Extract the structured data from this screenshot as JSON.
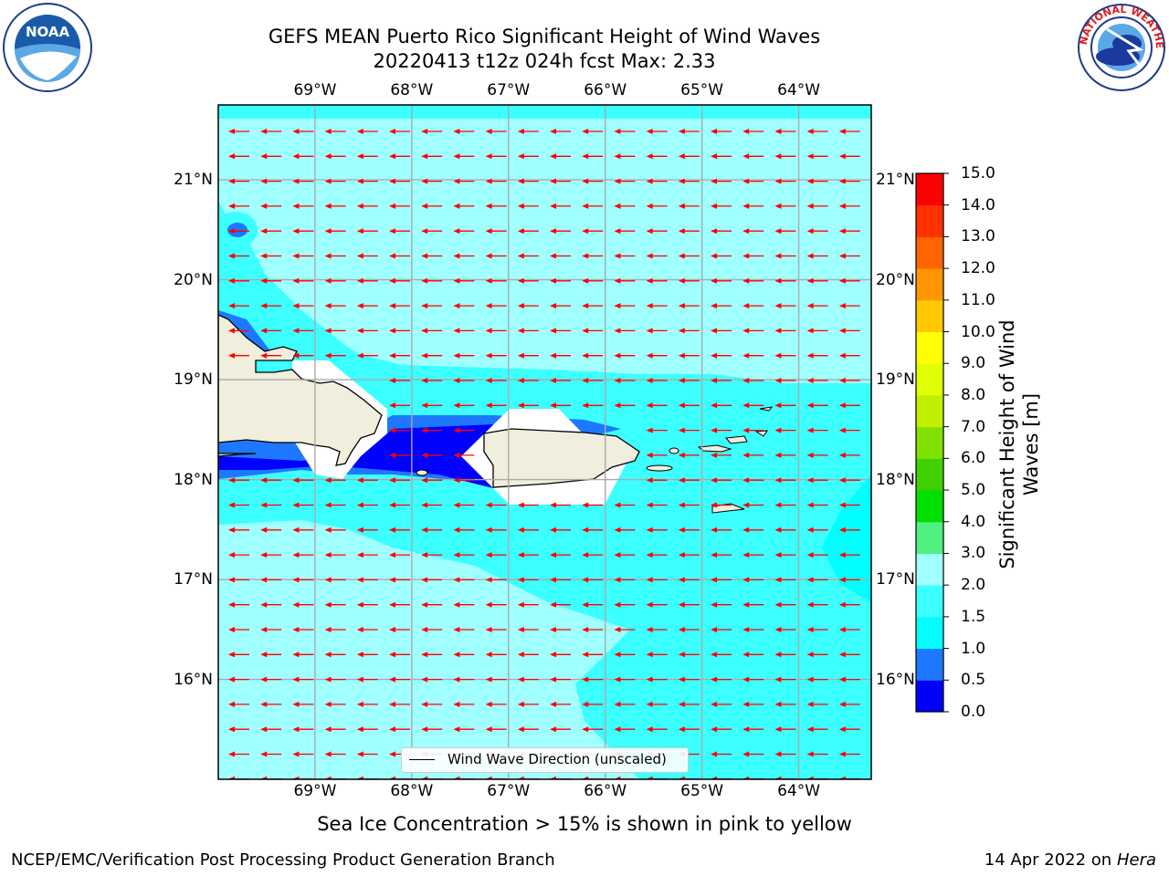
{
  "title": {
    "line1": "GEFS MEAN Puerto Rico Significant Height of Wind Waves",
    "line2": "20220413 t12z 024h fcst   Max: 2.33"
  },
  "logos": {
    "left": "NOAA",
    "right": "NATIONAL WEATHER SERVICE"
  },
  "map": {
    "lon_labels": [
      "69°W",
      "68°W",
      "67°W",
      "66°W",
      "65°W",
      "64°W"
    ],
    "lat_labels": [
      "21°N",
      "20°N",
      "19°N",
      "18°N",
      "17°N",
      "16°N"
    ],
    "lon_values": [
      -69,
      -68,
      -67,
      -66,
      -65,
      -64
    ],
    "lat_values": [
      21,
      20,
      19,
      18,
      17,
      16
    ],
    "extent": {
      "west": -70.0,
      "east": -63.25,
      "south": 15.0,
      "north": 21.75
    },
    "arrow_direction": "westward",
    "colors": {
      "land": "#f0eedc",
      "grid": "#aaaaaa",
      "arrows": "#ff0000",
      "coast": "#000000"
    }
  },
  "legend": {
    "label": "Wind Wave Direction (unscaled)"
  },
  "colorbar": {
    "label": "Significant Height of Wind Waves [m]",
    "ticks": [
      "0.0",
      "0.5",
      "1.0",
      "1.5",
      "2.0",
      "3.0",
      "4.0",
      "5.0",
      "6.0",
      "7.0",
      "8.0",
      "9.0",
      "10.0",
      "11.0",
      "12.0",
      "13.0",
      "14.0",
      "15.0"
    ],
    "colors": [
      "#0000ff",
      "#1e78ff",
      "#00ffff",
      "#3cffff",
      "#a0ffff",
      "#50f080",
      "#00e000",
      "#40d000",
      "#80e000",
      "#c0f000",
      "#e0ff00",
      "#ffff00",
      "#ffc800",
      "#ff9600",
      "#ff6400",
      "#ff3200",
      "#ff0000"
    ]
  },
  "subtitle": "Sea Ice Concentration > 15% is shown in pink to yellow",
  "footer": {
    "left": "NCEP/EMC/Verification Post Processing Product Generation Branch",
    "right_prefix": "14 Apr 2022 on ",
    "right_host": "Hera"
  }
}
